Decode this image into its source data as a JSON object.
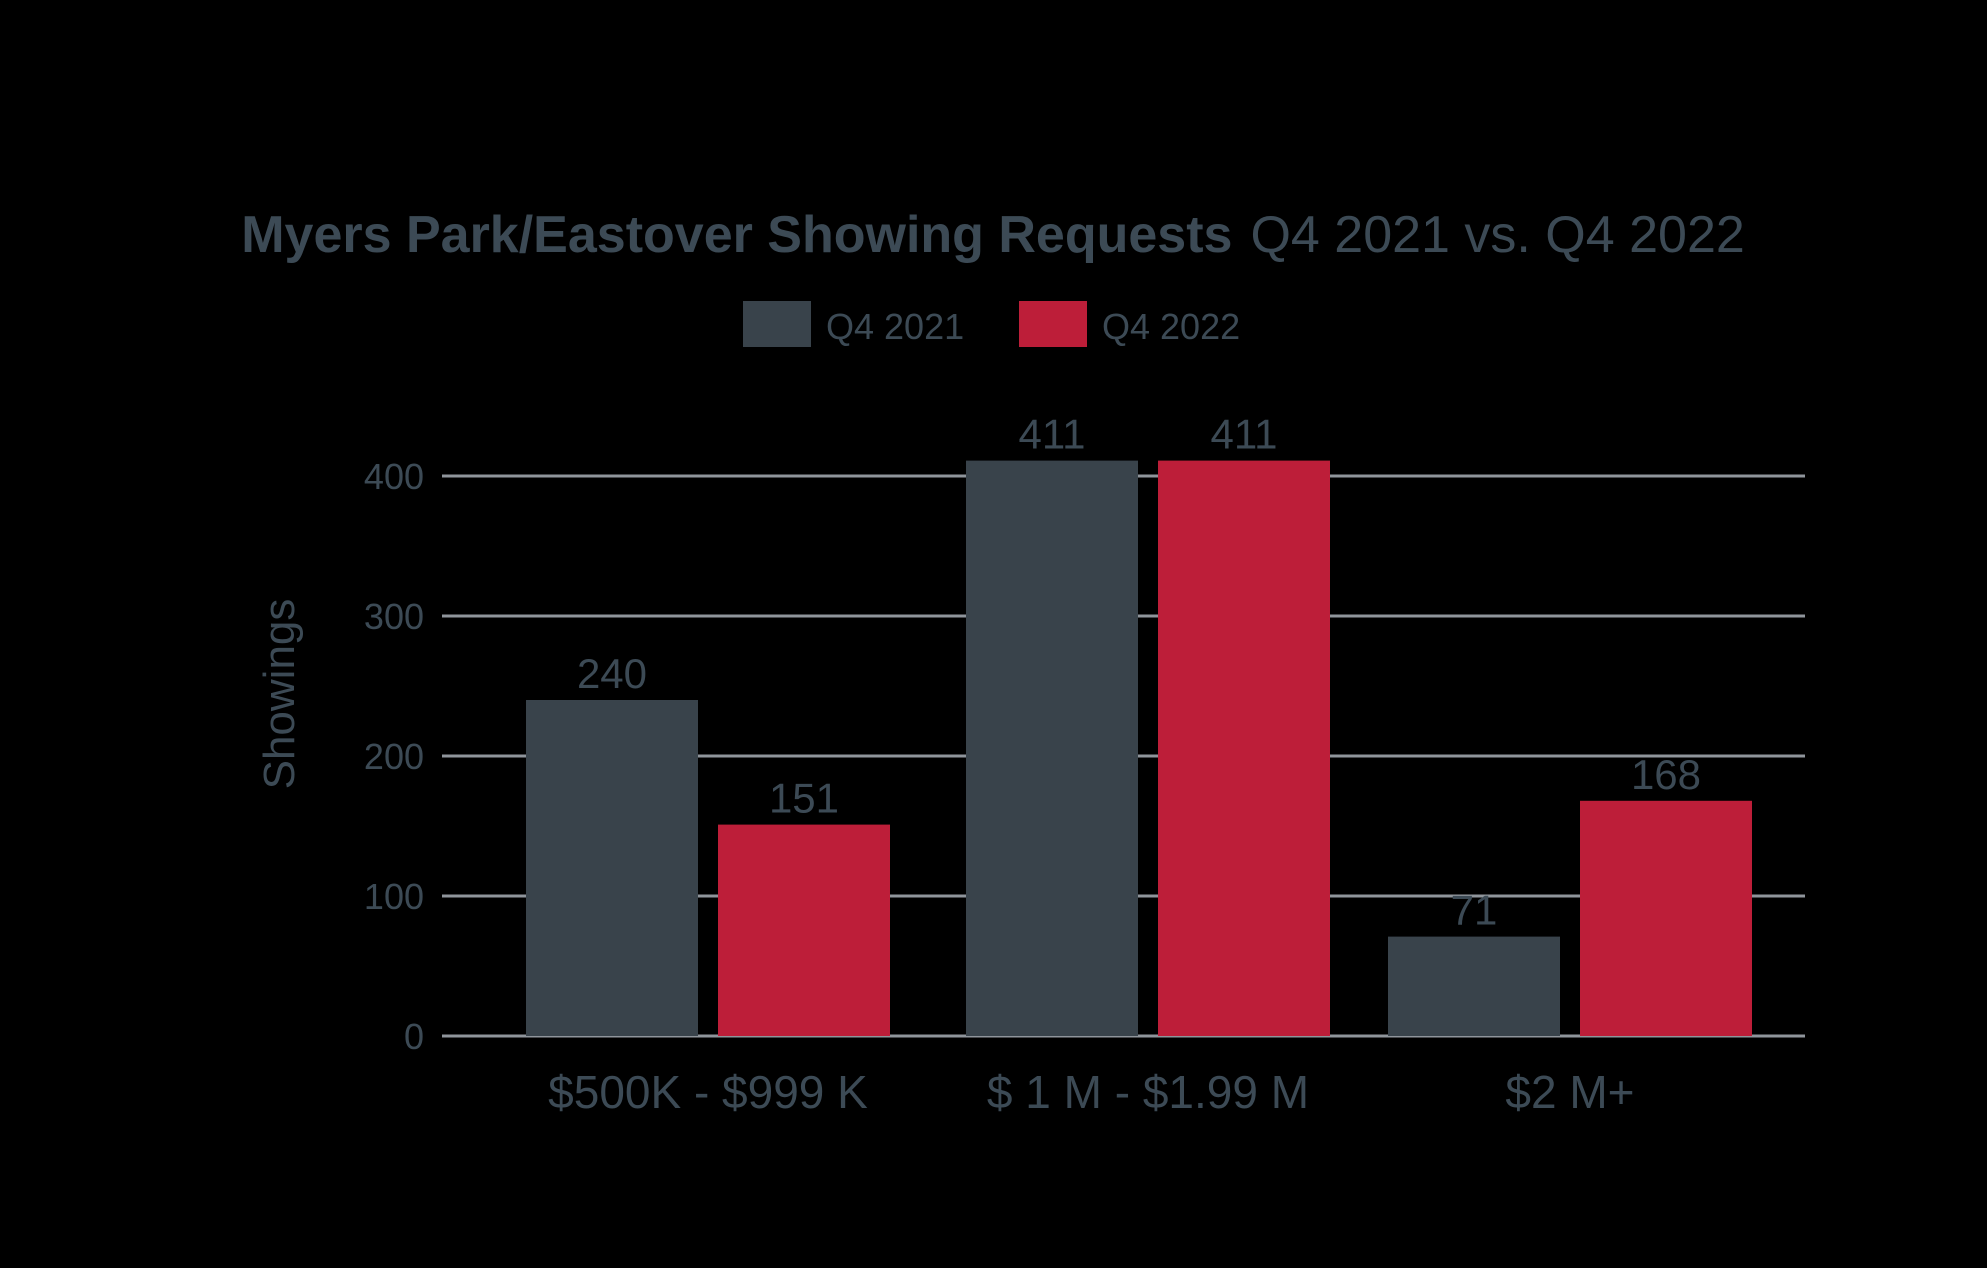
{
  "chart_data": {
    "type": "bar",
    "title_bold": "Myers Park/Eastover Showing Requests",
    "title_light": "Q4 2021 vs. Q4 2022",
    "xlabel": "",
    "ylabel": "Showings",
    "ylim": [
      0,
      430
    ],
    "yticks": [
      0,
      100,
      200,
      300,
      400
    ],
    "grid": true,
    "legend_position": "top-center",
    "categories": [
      "$500K - $999 K",
      "$ 1 M - $1.99 M",
      "$2 M+"
    ],
    "series": [
      {
        "name": "Q4 2021",
        "color": "#39434b",
        "values": [
          240,
          411,
          71
        ]
      },
      {
        "name": "Q4 2022",
        "color": "#bd1e39",
        "values": [
          151,
          411,
          168
        ]
      }
    ]
  },
  "colors": {
    "background": "#000000",
    "text": "#3c4a55",
    "grid": "#8f959b"
  }
}
